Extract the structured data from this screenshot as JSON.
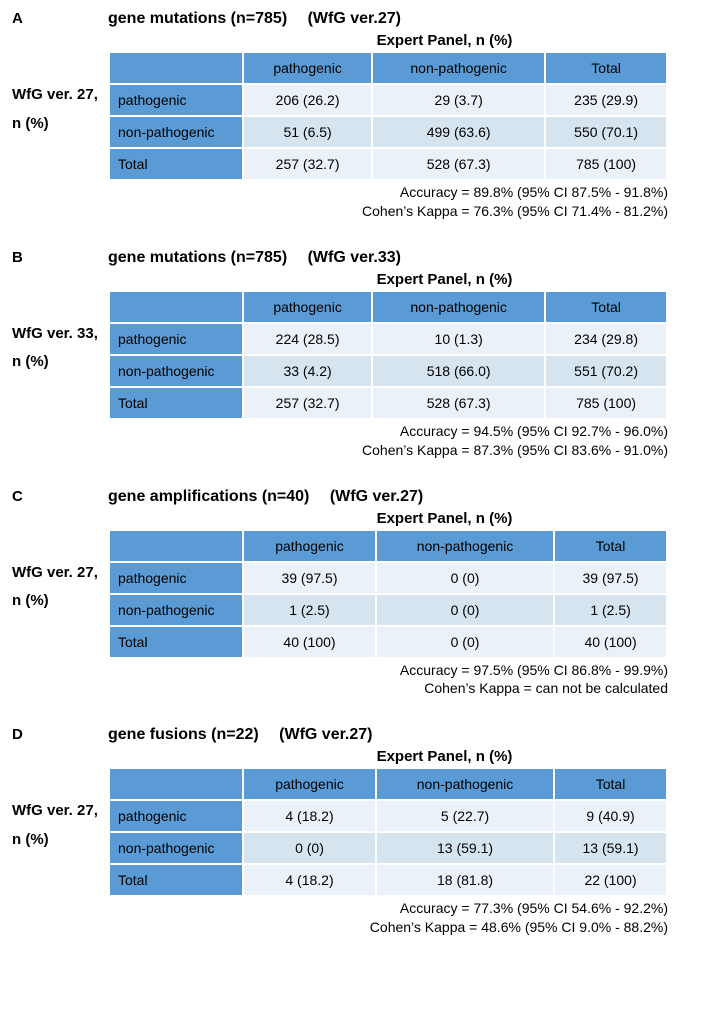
{
  "colors": {
    "header_bg": "#5b9bd5",
    "cell_light": "#eaf1f8",
    "cell_mid": "#d6e4f0",
    "border": "#ffffff",
    "text": "#000000"
  },
  "common": {
    "expert_panel_label": "Expert Panel, n (%)",
    "col_pathogenic": "pathogenic",
    "col_nonpathogenic": "non-pathogenic",
    "col_total": "Total",
    "row_pathogenic": "pathogenic",
    "row_nonpathogenic": "non-pathogenic",
    "row_total": "Total"
  },
  "panels": {
    "A": {
      "letter": "A",
      "title": "gene mutations (n=785)  (WfG ver.27)",
      "row_label_l1": "WfG ver. 27,",
      "row_label_l2": "n (%)",
      "cells": {
        "pp": "206 (26.2)",
        "pn": "29 (3.7)",
        "pt": "235 (29.9)",
        "np": "51 (6.5)",
        "nn": "499 (63.6)",
        "nt": "550 (70.1)",
        "tp": "257 (32.7)",
        "tn": "528 (67.3)",
        "tt": "785 (100)"
      },
      "accuracy": "Accuracy = 89.8% (95% CI 87.5% - 91.8%)",
      "kappa": "Cohen’s Kappa = 76.3% (95% CI 71.4% - 81.2%)"
    },
    "B": {
      "letter": "B",
      "title": "gene mutations (n=785)  (WfG ver.33)",
      "row_label_l1": "WfG ver. 33,",
      "row_label_l2": "n (%)",
      "cells": {
        "pp": "224 (28.5)",
        "pn": "10 (1.3)",
        "pt": "234 (29.8)",
        "np": "33 (4.2)",
        "nn": "518 (66.0)",
        "nt": "551 (70.2)",
        "tp": "257 (32.7)",
        "tn": "528 (67.3)",
        "tt": "785 (100)"
      },
      "accuracy": "Accuracy = 94.5% (95% CI 92.7% - 96.0%)",
      "kappa": "Cohen’s Kappa = 87.3% (95% CI 83.6% - 91.0%)"
    },
    "C": {
      "letter": "C",
      "title": "gene amplifications (n=40)  (WfG ver.27)",
      "row_label_l1": "WfG ver. 27,",
      "row_label_l2": "n (%)",
      "cells": {
        "pp": "39 (97.5)",
        "pn": "0 (0)",
        "pt": "39 (97.5)",
        "np": "1 (2.5)",
        "nn": "0 (0)",
        "nt": "1 (2.5)",
        "tp": "40 (100)",
        "tn": "0 (0)",
        "tt": "40 (100)"
      },
      "accuracy": "Accuracy = 97.5% (95% CI 86.8% - 99.9%)",
      "kappa": "Cohen’s Kappa = can not be calculated"
    },
    "D": {
      "letter": "D",
      "title": "gene fusions (n=22)  (WfG ver.27)",
      "row_label_l1": "WfG ver. 27,",
      "row_label_l2": "n (%)",
      "cells": {
        "pp": "4 (18.2)",
        "pn": "5 (22.7)",
        "pt": "9 (40.9)",
        "np": "0 (0)",
        "nn": "13 (59.1)",
        "nt": "13 (59.1)",
        "tp": "4 (18.2)",
        "tn": "18 (81.8)",
        "tt": "22 (100)"
      },
      "accuracy": "Accuracy = 77.3% (95% CI 54.6% - 92.2%)",
      "kappa": "Cohen’s Kappa = 48.6% (95% CI 9.0% - 88.2%)"
    }
  }
}
